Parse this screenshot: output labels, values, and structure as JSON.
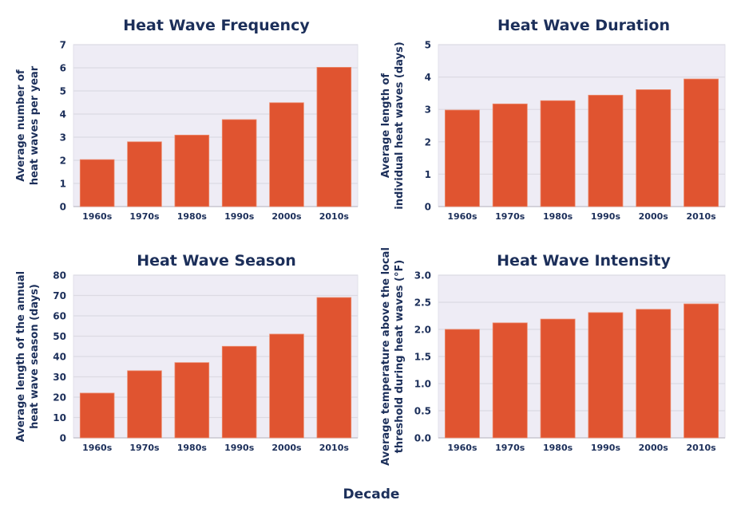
{
  "colors": {
    "bar": "#e05430",
    "plot_bg": "#eeecf5",
    "text": "#1c2f5a",
    "grid": "#dcdae3"
  },
  "shared_xlabel": "Decade",
  "chart_data": [
    {
      "type": "bar",
      "title": "Heat Wave Frequency",
      "ylabel": "Average number of heat waves per year",
      "categories": [
        "1960s",
        "1970s",
        "1980s",
        "1990s",
        "2000s",
        "2010s"
      ],
      "values": [
        2.03,
        2.8,
        3.09,
        3.76,
        4.49,
        6.02
      ],
      "ylim": [
        0,
        7
      ],
      "yticks": [
        "0",
        "1",
        "2",
        "3",
        "4",
        "5",
        "6",
        "7"
      ],
      "grid": true
    },
    {
      "type": "bar",
      "title": "Heat Wave Duration",
      "ylabel": "Average length of individual heat waves (days)",
      "categories": [
        "1960s",
        "1970s",
        "1980s",
        "1990s",
        "2000s",
        "2010s"
      ],
      "values": [
        2.98,
        3.17,
        3.27,
        3.44,
        3.61,
        3.94
      ],
      "ylim": [
        0,
        5
      ],
      "yticks": [
        "0",
        "1",
        "2",
        "3",
        "4",
        "5"
      ],
      "grid": true
    },
    {
      "type": "bar",
      "title": "Heat Wave Season",
      "ylabel": "Average length of the annual heat wave season (days)",
      "categories": [
        "1960s",
        "1970s",
        "1980s",
        "1990s",
        "2000s",
        "2010s"
      ],
      "values": [
        22,
        33,
        37,
        45,
        51,
        69
      ],
      "ylim": [
        0,
        80
      ],
      "yticks": [
        "0",
        "10",
        "20",
        "30",
        "40",
        "50",
        "60",
        "70",
        "80"
      ],
      "grid": true
    },
    {
      "type": "bar",
      "title": "Heat Wave Intensity",
      "ylabel": "Average temperature above the local threshold during heat waves (°F)",
      "categories": [
        "1960s",
        "1970s",
        "1980s",
        "1990s",
        "2000s",
        "2010s"
      ],
      "values": [
        2.0,
        2.12,
        2.19,
        2.31,
        2.37,
        2.47
      ],
      "ylim": [
        0,
        3
      ],
      "yticks": [
        "0.0",
        "0.5",
        "1.0",
        "1.5",
        "2.0",
        "2.5",
        "3.0"
      ],
      "grid": true
    }
  ]
}
